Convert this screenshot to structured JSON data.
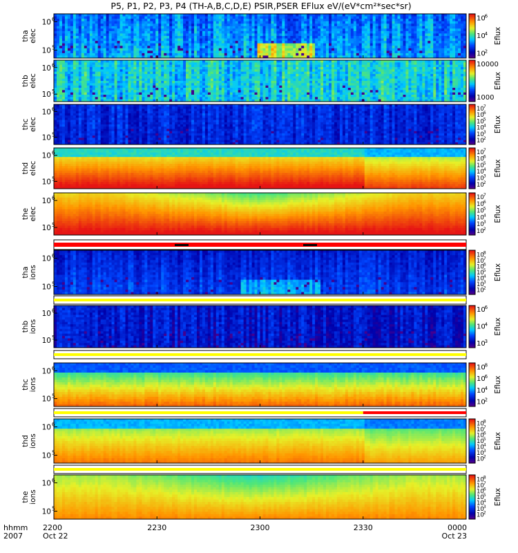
{
  "title": "P5, P1, P2, P3, P4 (TH-A,B,C,D,E) PSIR,PSER EFlux eV/(eV*cm²*sec*sr)",
  "colorbar_unit": "Eflux",
  "colors": {
    "flag_ok": "#ffff00",
    "flag_bad": "#ff0000",
    "gap": "#000000"
  },
  "chart_data": {
    "type": "heatmap",
    "x_axis": {
      "ticks": [
        "2200",
        "2230",
        "2300",
        "2330",
        "0000"
      ],
      "tick_hours": [
        0,
        0.5,
        1.0,
        1.5,
        2.0
      ],
      "range_hours": [
        0,
        2.0
      ],
      "left_label": [
        "hhmm",
        "2007"
      ],
      "date_left": "Oct 22",
      "date_right": "Oct 23"
    },
    "panels": [
      {
        "id": "tha-elec",
        "label": [
          "tha",
          "elec"
        ],
        "yticks": [
          {
            "text": "10",
            "exp": "6"
          },
          {
            "text": "10",
            "exp": "5"
          }
        ],
        "cbar_ticks": [
          {
            "text": "10",
            "exp": "6"
          },
          {
            "text": "10",
            "exp": "4"
          },
          {
            "text": "10",
            "exp": "2"
          }
        ],
        "base": 0.33,
        "low": 0.38,
        "grad": 0.03,
        "noise": 0.13,
        "dips": [
          {
            "c": 1.12,
            "w": 0.28,
            "a": 0.3
          }
        ],
        "bump": 0
      },
      {
        "id": "thb-elec",
        "label": [
          "thb",
          "elec"
        ],
        "yticks": [
          {
            "text": "10",
            "exp": "6"
          },
          {
            "text": "10",
            "exp": "5"
          }
        ],
        "cbar_ticks": [
          {
            "text": "10000",
            "exp": ""
          },
          {
            "text": "1000",
            "exp": ""
          }
        ],
        "base": 0.46,
        "low": 0.44,
        "grad": 0.02,
        "noise": 0.13,
        "dips": [],
        "bump": 0
      },
      {
        "id": "thc-elec",
        "label": [
          "thc",
          "elec"
        ],
        "yticks": [
          {
            "text": "10",
            "exp": "6"
          },
          {
            "text": "10",
            "exp": "5"
          }
        ],
        "cbar_ticks": [
          {
            "text": "10",
            "exp": "7"
          },
          {
            "text": "10",
            "exp": "6"
          },
          {
            "text": "10",
            "exp": "5"
          },
          {
            "text": "10",
            "exp": "4"
          },
          {
            "text": "10",
            "exp": "3"
          },
          {
            "text": "10",
            "exp": "2"
          }
        ],
        "base": 0.22,
        "low": 0.2,
        "grad": 0.01,
        "noise": 0.09,
        "dips": [],
        "bump": 0
      },
      {
        "id": "thd-elec",
        "label": [
          "thd",
          "elec"
        ],
        "yticks": [
          {
            "text": "10",
            "exp": "6"
          },
          {
            "text": "10",
            "exp": "5"
          }
        ],
        "cbar_ticks": [
          {
            "text": "10",
            "exp": "7"
          },
          {
            "text": "10",
            "exp": "6"
          },
          {
            "text": "10",
            "exp": "5"
          },
          {
            "text": "10",
            "exp": "4"
          },
          {
            "text": "10",
            "exp": "3"
          },
          {
            "text": "10",
            "exp": "2"
          }
        ],
        "base": 0.75,
        "low": 0.9,
        "grad": 0.4,
        "noise": 0.02,
        "dips": [],
        "bump": 0.08,
        "top_band": 0.48
      },
      {
        "id": "the-elec",
        "label": [
          "the",
          "elec"
        ],
        "yticks": [
          {
            "text": "10",
            "exp": "6"
          },
          {
            "text": "10",
            "exp": "5"
          }
        ],
        "cbar_ticks": [
          {
            "text": "10",
            "exp": "7"
          },
          {
            "text": "10",
            "exp": "6"
          },
          {
            "text": "10",
            "exp": "5"
          },
          {
            "text": "10",
            "exp": "4"
          },
          {
            "text": "10",
            "exp": "3"
          },
          {
            "text": "10",
            "exp": "2"
          }
        ],
        "base": 0.82,
        "low": 0.93,
        "grad": 0.3,
        "noise": 0.02,
        "dips": [],
        "bump": 0,
        "arch": 0.22
      },
      {
        "id": "tha-ions",
        "label": [
          "tha",
          "ions"
        ],
        "yticks": [
          {
            "text": "10",
            "exp": "6"
          },
          {
            "text": "10",
            "exp": "5"
          }
        ],
        "cbar_ticks": [
          {
            "text": "10",
            "exp": "8"
          },
          {
            "text": "10",
            "exp": "7"
          },
          {
            "text": "10",
            "exp": "6"
          },
          {
            "text": "10",
            "exp": "5"
          },
          {
            "text": "10",
            "exp": "4"
          },
          {
            "text": "10",
            "exp": "3"
          },
          {
            "text": "10",
            "exp": "2"
          }
        ],
        "base": 0.2,
        "low": 0.25,
        "grad": 0.04,
        "noise": 0.08,
        "dips": [
          {
            "c": 1.1,
            "w": 0.38,
            "a": 0.14
          }
        ],
        "bump": 0
      },
      {
        "id": "thb-ions",
        "label": [
          "thb",
          "ions"
        ],
        "yticks": [
          {
            "text": "10",
            "exp": "6"
          },
          {
            "text": "10",
            "exp": "5"
          }
        ],
        "cbar_ticks": [
          {
            "text": "10",
            "exp": "6"
          },
          {
            "text": "10",
            "exp": "4"
          },
          {
            "text": "10",
            "exp": "3"
          }
        ],
        "base": 0.18,
        "low": 0.16,
        "grad": 0.01,
        "noise": 0.1,
        "dips": [],
        "bump": 0
      },
      {
        "id": "thc-ions",
        "label": [
          "thc",
          "ions"
        ],
        "yticks": [
          {
            "text": "10",
            "exp": "6"
          },
          {
            "text": "10",
            "exp": "5"
          }
        ],
        "cbar_ticks": [
          {
            "text": "10",
            "exp": "8"
          },
          {
            "text": "10",
            "exp": "6"
          },
          {
            "text": "10",
            "exp": "4"
          },
          {
            "text": "10",
            "exp": "2"
          }
        ],
        "base": 0.55,
        "low": 0.75,
        "grad": 0.45,
        "noise": 0.03,
        "dips": [],
        "bump": 0,
        "top_band": 0.3
      },
      {
        "id": "thd-ions",
        "label": [
          "thd",
          "ions"
        ],
        "yticks": [
          {
            "text": "10",
            "exp": "6"
          },
          {
            "text": "10",
            "exp": "5"
          }
        ],
        "cbar_ticks": [
          {
            "text": "10",
            "exp": "8"
          },
          {
            "text": "10",
            "exp": "7"
          },
          {
            "text": "10",
            "exp": "6"
          },
          {
            "text": "10",
            "exp": "5"
          },
          {
            "text": "10",
            "exp": "4"
          },
          {
            "text": "10",
            "exp": "3"
          },
          {
            "text": "10",
            "exp": "2"
          }
        ],
        "base": 0.64,
        "low": 0.77,
        "grad": 0.3,
        "noise": 0.02,
        "dips": [],
        "bump": 0.06,
        "top_band": 0.4
      },
      {
        "id": "the-ions",
        "label": [
          "the",
          "ions"
        ],
        "yticks": [
          {
            "text": "10",
            "exp": "6"
          },
          {
            "text": "10",
            "exp": "5"
          }
        ],
        "cbar_ticks": [
          {
            "text": "10",
            "exp": "8"
          },
          {
            "text": "10",
            "exp": "7"
          },
          {
            "text": "10",
            "exp": "6"
          },
          {
            "text": "10",
            "exp": "5"
          },
          {
            "text": "10",
            "exp": "4"
          },
          {
            "text": "10",
            "exp": "3"
          },
          {
            "text": "10",
            "exp": "2"
          }
        ],
        "base": 0.7,
        "low": 0.76,
        "grad": 0.25,
        "noise": 0.02,
        "dips": [],
        "bump": 0,
        "arch": 0.16
      }
    ],
    "flag_bars": [
      {
        "after": "the-elec",
        "segments": [
          {
            "from": 0,
            "to": 2.0,
            "color": "#ff0000"
          }
        ]
      },
      {
        "after": "tha-ions",
        "segments": [
          {
            "from": 0,
            "to": 2.0,
            "color": "#ffff00"
          }
        ]
      },
      {
        "after": "thb-ions",
        "segments": [
          {
            "from": 0,
            "to": 2.0,
            "color": "#ffff00"
          }
        ]
      },
      {
        "after": "thc-ions",
        "segments": [
          {
            "from": 0,
            "to": 1.5,
            "color": "#ffff00"
          },
          {
            "from": 1.5,
            "to": 2.0,
            "color": "#ff0000"
          }
        ]
      },
      {
        "after": "thd-ions",
        "segments": [
          {
            "from": 0,
            "to": 2.0,
            "color": "#ffff00"
          }
        ]
      }
    ]
  }
}
